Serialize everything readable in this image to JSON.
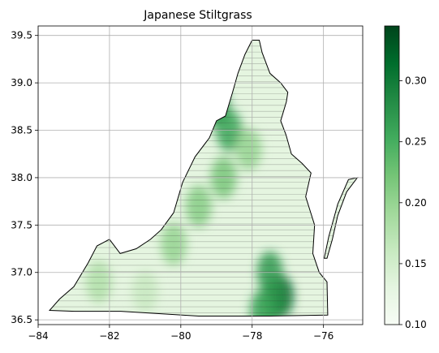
{
  "chart_data": {
    "type": "heatmap",
    "title": "Japanese Stiltgrass",
    "xlabel": "",
    "ylabel": "",
    "xlim": [
      -84.0,
      -74.9
    ],
    "ylim": [
      36.45,
      39.6
    ],
    "grid": true,
    "colormap": "Greens",
    "x_ticks": [
      -84,
      -82,
      -80,
      -78,
      -76
    ],
    "y_ticks": [
      36.5,
      37.0,
      37.5,
      38.0,
      38.5,
      39.0,
      39.5
    ],
    "colorbar": {
      "range": [
        0.1,
        0.345
      ],
      "ticks": [
        0.1,
        0.15,
        0.2,
        0.25,
        0.3
      ],
      "colors": [
        "#f7fcf5",
        "#e5f5e0",
        "#c7e9c0",
        "#a1d99b",
        "#74c476",
        "#41ab5d",
        "#238b45",
        "#006d2c",
        "#00441b"
      ]
    },
    "outline_color": "#000000",
    "region": [
      [
        -83.68,
        36.6
      ],
      [
        -82.98,
        36.59
      ],
      [
        -81.68,
        36.59
      ],
      [
        -79.5,
        36.54
      ],
      [
        -77.5,
        36.54
      ],
      [
        -75.88,
        36.55
      ],
      [
        -75.9,
        36.9
      ],
      [
        -76.12,
        37.0
      ],
      [
        -76.3,
        37.2
      ],
      [
        -76.25,
        37.5
      ],
      [
        -76.5,
        37.8
      ],
      [
        -76.35,
        38.05
      ],
      [
        -76.6,
        38.15
      ],
      [
        -76.9,
        38.25
      ],
      [
        -77.05,
        38.45
      ],
      [
        -77.2,
        38.6
      ],
      [
        -77.04,
        38.8
      ],
      [
        -77.0,
        38.9
      ],
      [
        -77.2,
        39.0
      ],
      [
        -77.5,
        39.1
      ],
      [
        -77.72,
        39.32
      ],
      [
        -77.8,
        39.45
      ],
      [
        -78.0,
        39.45
      ],
      [
        -78.2,
        39.3
      ],
      [
        -78.4,
        39.1
      ],
      [
        -78.55,
        38.9
      ],
      [
        -78.75,
        38.65
      ],
      [
        -79.0,
        38.6
      ],
      [
        -79.2,
        38.42
      ],
      [
        -79.6,
        38.22
      ],
      [
        -79.95,
        37.95
      ],
      [
        -80.2,
        37.63
      ],
      [
        -80.55,
        37.45
      ],
      [
        -80.85,
        37.35
      ],
      [
        -81.25,
        37.25
      ],
      [
        -81.7,
        37.2
      ],
      [
        -82.0,
        37.35
      ],
      [
        -82.35,
        37.28
      ],
      [
        -82.6,
        37.1
      ],
      [
        -83.0,
        36.85
      ],
      [
        -83.4,
        36.72
      ],
      [
        -83.68,
        36.6
      ]
    ],
    "eastern_shore": [
      [
        -75.98,
        37.15
      ],
      [
        -75.85,
        37.38
      ],
      [
        -75.6,
        37.72
      ],
      [
        -75.3,
        37.98
      ],
      [
        -75.05,
        38.0
      ],
      [
        -75.35,
        37.85
      ],
      [
        -75.6,
        37.6
      ],
      [
        -75.75,
        37.35
      ],
      [
        -75.9,
        37.15
      ],
      [
        -75.98,
        37.15
      ]
    ],
    "hotspots": [
      {
        "x": -77.2,
        "y": 36.75,
        "value": 0.32
      },
      {
        "x": -77.4,
        "y": 36.7,
        "value": 0.28
      },
      {
        "x": -77.5,
        "y": 37.0,
        "value": 0.27
      },
      {
        "x": -77.7,
        "y": 36.6,
        "value": 0.26
      },
      {
        "x": -79.0,
        "y": 38.75,
        "value": 0.28
      },
      {
        "x": -78.65,
        "y": 38.5,
        "value": 0.26
      },
      {
        "x": -78.8,
        "y": 38.0,
        "value": 0.22
      },
      {
        "x": -79.5,
        "y": 37.7,
        "value": 0.21
      },
      {
        "x": -80.2,
        "y": 37.3,
        "value": 0.2
      },
      {
        "x": -78.1,
        "y": 38.3,
        "value": 0.2
      },
      {
        "x": -82.3,
        "y": 36.9,
        "value": 0.18
      },
      {
        "x": -81.0,
        "y": 36.8,
        "value": 0.16
      }
    ]
  }
}
